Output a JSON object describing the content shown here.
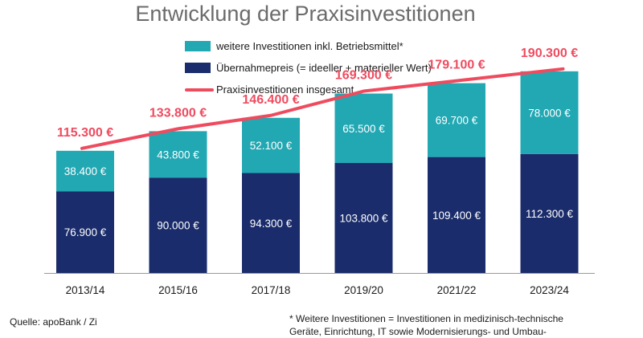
{
  "title": "Entwicklung der Praxisinvestitionen",
  "legend": {
    "teal": "weitere Investitionen inkl. Betriebsmittel*",
    "navy": "Übernahmepreis (= ideeller + materieller Wert)",
    "line": "Praxisinvestitionen insgesamt"
  },
  "colors": {
    "navy": "#1a2c6b",
    "teal": "#22a8b3",
    "line": "#ef4b5f"
  },
  "chart_data": {
    "type": "bar",
    "stacked": true,
    "title": "Entwicklung der Praxisinvestitionen",
    "categories": [
      "2013/14",
      "2015/16",
      "2017/18",
      "2019/20",
      "2021/22",
      "2023/24"
    ],
    "series": [
      {
        "name": "Übernahmepreis (= ideeller + materieller Wert)",
        "values": [
          76900,
          90000,
          94300,
          103800,
          109400,
          112300
        ],
        "labels": [
          "76.900 €",
          "90.000 €",
          "94.300 €",
          "103.800 €",
          "109.400 €",
          "112.300 €"
        ]
      },
      {
        "name": "weitere Investitionen inkl. Betriebsmittel*",
        "values": [
          38400,
          43800,
          52100,
          65500,
          69700,
          78000
        ],
        "labels": [
          "38.400 €",
          "43.800 €",
          "52.100 €",
          "65.500 €",
          "69.700 €",
          "78.000 €"
        ]
      }
    ],
    "line": {
      "name": "Praxisinvestitionen insgesamt",
      "values": [
        115300,
        133800,
        146400,
        169300,
        179100,
        190300
      ],
      "labels": [
        "115.300 €",
        "133.800 €",
        "146.400 €",
        "169.300 €",
        "179.100 €",
        "190.300 €"
      ]
    },
    "ylim": [
      0,
      200000
    ],
    "grid": false,
    "legend_position": "top"
  },
  "source": "Quelle: apoBank / Zi",
  "footnote": {
    "line1": "* Weitere Investitionen = Investitionen in medizinisch-technische",
    "line2": "Geräte, Einrichtung, IT sowie Modernisierungs- und Umbau-"
  }
}
